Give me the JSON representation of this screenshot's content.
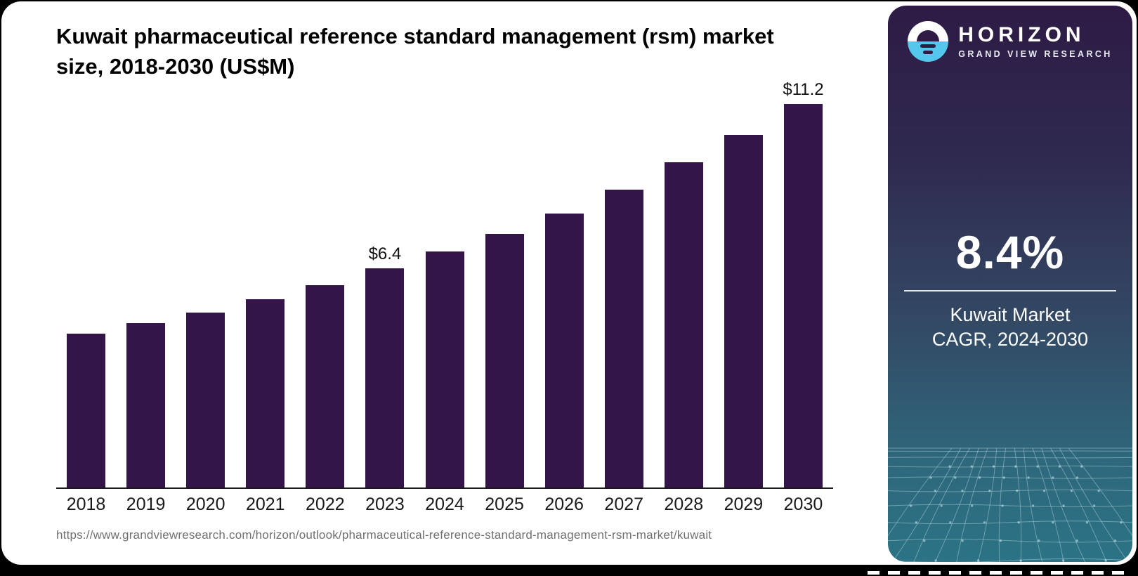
{
  "header": {
    "title": "Kuwait pharmaceutical reference standard management (rsm) market size, 2018-2030 (US$M)"
  },
  "chart_data": {
    "type": "bar",
    "title": "Kuwait pharmaceutical reference standard management (rsm) market size, 2018-2030 (US$M)",
    "categories": [
      "2018",
      "2019",
      "2020",
      "2021",
      "2022",
      "2023",
      "2024",
      "2025",
      "2026",
      "2027",
      "2028",
      "2029",
      "2030"
    ],
    "values": [
      4.5,
      4.8,
      5.1,
      5.5,
      5.9,
      6.4,
      6.9,
      7.4,
      8.0,
      8.7,
      9.5,
      10.3,
      11.2
    ],
    "bar_labels": [
      "",
      "",
      "",
      "",
      "",
      "$6.4",
      "",
      "",
      "",
      "",
      "",
      "",
      "$11.2"
    ],
    "xlabel": "",
    "ylabel": "",
    "ylim": [
      0,
      11.9
    ],
    "grid": false,
    "legend": "none",
    "bar_color": "#34154a",
    "axis_color": "#1a1a1a",
    "label_color": "#111111"
  },
  "footer": {
    "source_url": "https://www.grandviewresearch.com/horizon/outlook/pharmaceutical-reference-standard-management-rsm-market/kuwait"
  },
  "sidebar": {
    "brand_name": "HORIZON",
    "brand_tagline": "GRAND VIEW RESEARCH",
    "stat_value": "8.4%",
    "stat_label_line1": "Kuwait Market",
    "stat_label_line2": "CAGR, 2024-2030",
    "colors": {
      "panel_top": "#2e1b45",
      "panel_mid": "#334a65",
      "panel_bottom": "#2c7386",
      "logo_blue": "#56c7ec",
      "bar_purple": "#34154a"
    }
  }
}
